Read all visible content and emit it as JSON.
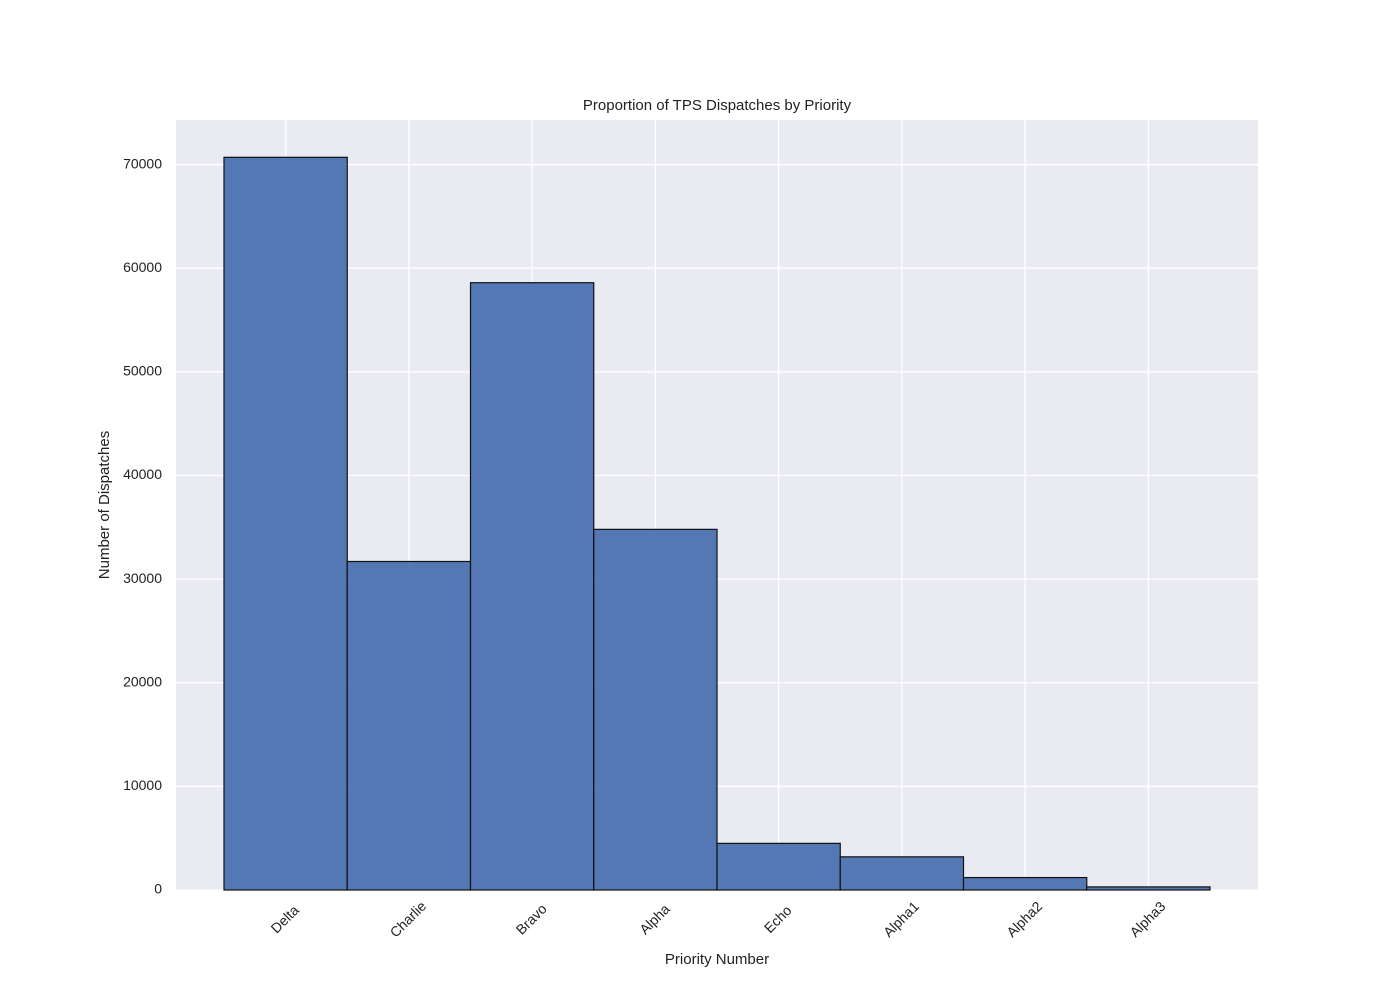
{
  "chart_data": {
    "type": "bar",
    "title": "Proportion of TPS Dispatches by Priority",
    "x_label": "Priority Number",
    "y_label": "Number of Dispatches",
    "categories": [
      "Delta",
      "Charlie",
      "Bravo",
      "Alpha",
      "Echo",
      "Alpha1",
      "Alpha2",
      "Alpha3"
    ],
    "values": [
      70700,
      31700,
      58600,
      34800,
      4500,
      3200,
      1200,
      300
    ],
    "color": "#4c72b0",
    "ylim": [
      0,
      74300
    ],
    "yticks": [
      0,
      10000,
      20000,
      30000,
      40000,
      50000,
      60000,
      70000
    ],
    "grid": true
  }
}
